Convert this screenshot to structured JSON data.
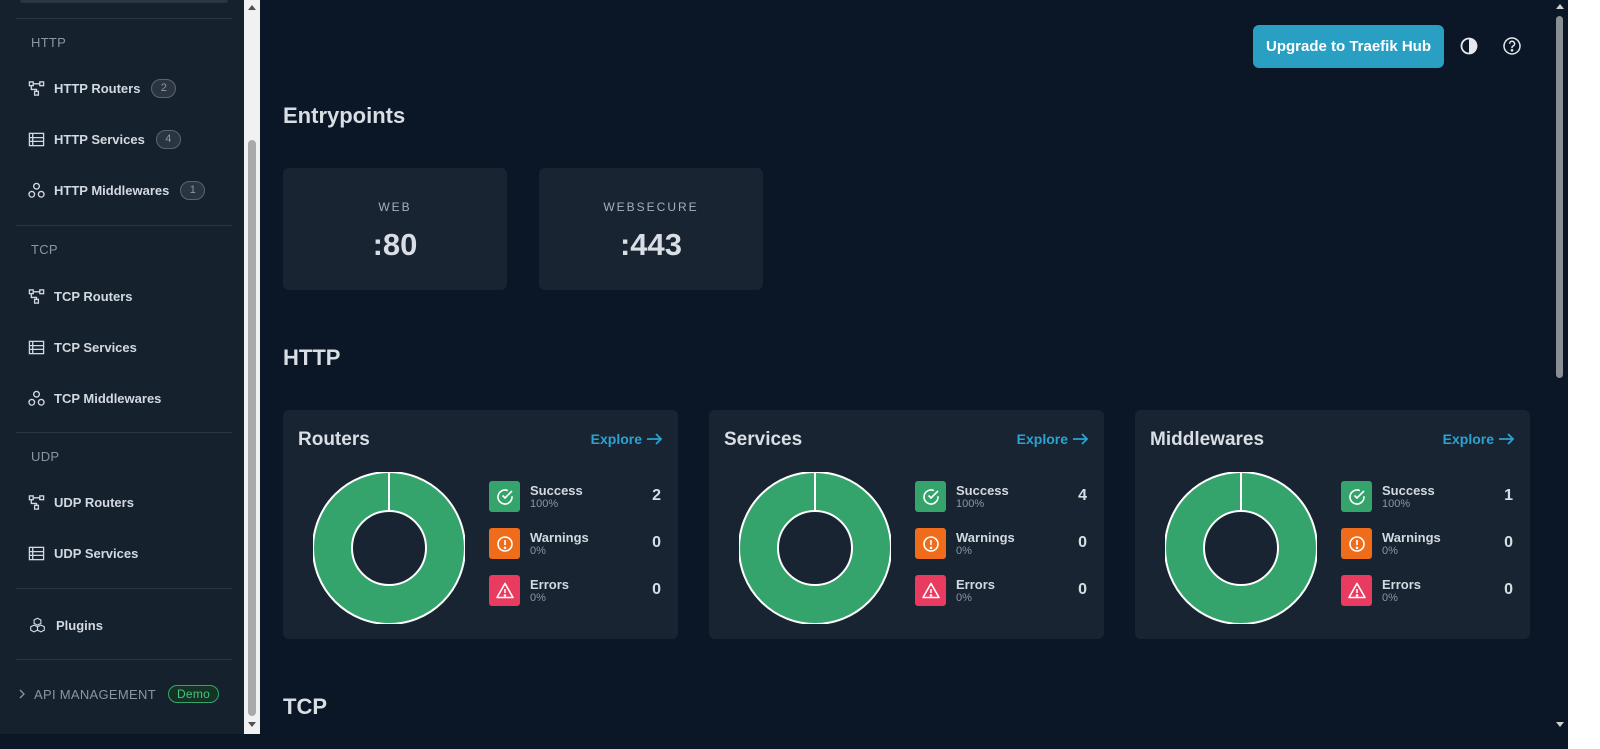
{
  "sidebar": {
    "sections": {
      "http": "HTTP",
      "tcp": "TCP",
      "udp": "UDP"
    },
    "http_items": [
      {
        "label": "HTTP Routers",
        "count": "2"
      },
      {
        "label": "HTTP Services",
        "count": "4"
      },
      {
        "label": "HTTP Middlewares",
        "count": "1"
      }
    ],
    "tcp_items": [
      {
        "label": "TCP Routers"
      },
      {
        "label": "TCP Services"
      },
      {
        "label": "TCP Middlewares"
      }
    ],
    "udp_items": [
      {
        "label": "UDP Routers"
      },
      {
        "label": "UDP Services"
      }
    ],
    "plugins": "Plugins",
    "api_management": "API MANAGEMENT",
    "demo_badge": "Demo"
  },
  "header": {
    "upgrade_label": "Upgrade to Traefik Hub",
    "theme_icon": "contrast-icon",
    "help_icon": "help-circle-icon"
  },
  "entrypoints": {
    "title": "Entrypoints",
    "items": [
      {
        "name": "WEB",
        "port": ":80"
      },
      {
        "name": "WEBSECURE",
        "port": ":443"
      }
    ]
  },
  "http": {
    "title": "HTTP",
    "explore_label": "Explore",
    "cards": [
      {
        "title": "Routers",
        "success": {
          "label": "Success",
          "percent": "100%",
          "value": "2"
        },
        "warnings": {
          "label": "Warnings",
          "percent": "0%",
          "value": "0"
        },
        "errors": {
          "label": "Errors",
          "percent": "0%",
          "value": "0"
        }
      },
      {
        "title": "Services",
        "success": {
          "label": "Success",
          "percent": "100%",
          "value": "4"
        },
        "warnings": {
          "label": "Warnings",
          "percent": "0%",
          "value": "0"
        },
        "errors": {
          "label": "Errors",
          "percent": "0%",
          "value": "0"
        }
      },
      {
        "title": "Middlewares",
        "success": {
          "label": "Success",
          "percent": "100%",
          "value": "1"
        },
        "warnings": {
          "label": "Warnings",
          "percent": "0%",
          "value": "0"
        },
        "errors": {
          "label": "Errors",
          "percent": "0%",
          "value": "0"
        }
      }
    ]
  },
  "tcp": {
    "title": "TCP"
  },
  "colors": {
    "accent": "#2a9fc4",
    "success": "#34a46c",
    "warning": "#ef6c1a",
    "error": "#e83b5f",
    "link": "#2aa3d3"
  }
}
